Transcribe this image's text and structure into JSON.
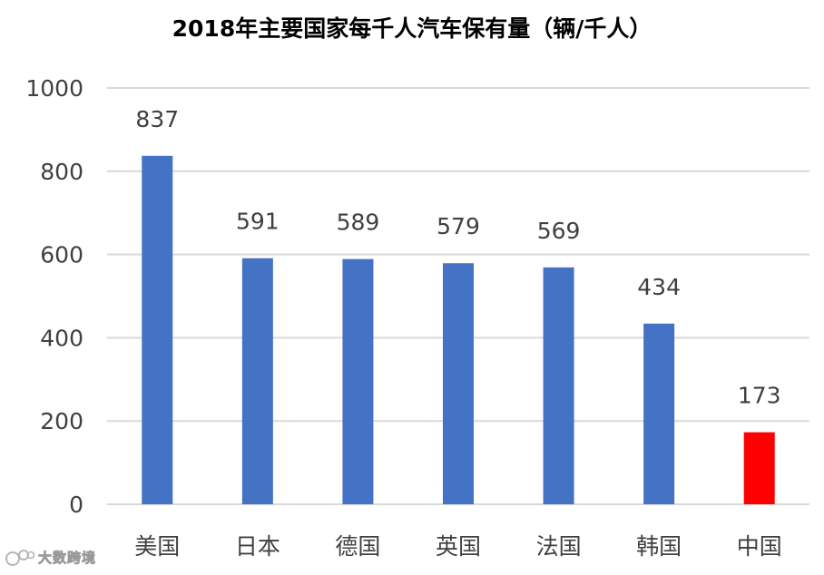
{
  "chart_data": {
    "type": "bar",
    "title": "2018年主要国家每千人汽车保有量（辆/千人）",
    "categories": [
      "美国",
      "日本",
      "德国",
      "英国",
      "法国",
      "韩国",
      "中国"
    ],
    "values": [
      837,
      591,
      589,
      579,
      569,
      434,
      173
    ],
    "bar_colors": [
      "#4472C4",
      "#4472C4",
      "#4472C4",
      "#4472C4",
      "#4472C4",
      "#4472C4",
      "#FF0000"
    ],
    "ylim": [
      0,
      1000
    ],
    "yticks": [
      0,
      200,
      400,
      600,
      800,
      1000
    ],
    "grid": true,
    "gridline_color": "#D9D9D9",
    "data_labels": true
  },
  "watermark": {
    "text": "大数跨境",
    "icon": "watermark-logo-icon"
  }
}
